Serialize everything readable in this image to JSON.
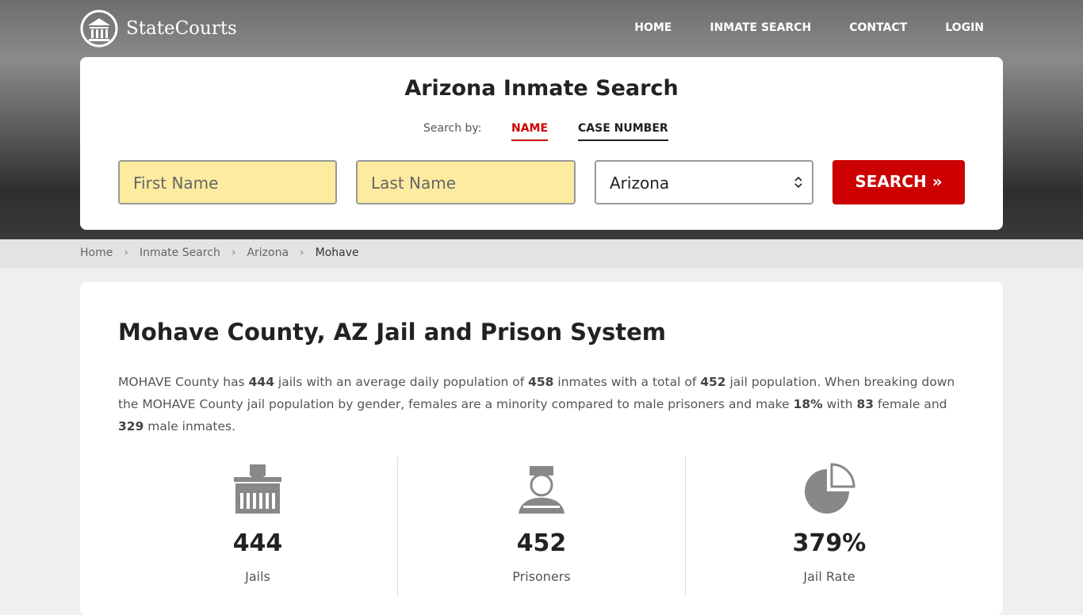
{
  "header": {
    "logo": "StateCourts",
    "nav": [
      "HOME",
      "INMATE SEARCH",
      "CONTACT",
      "LOGIN"
    ]
  },
  "search": {
    "title": "Arizona Inmate Search",
    "search_by": "Search by:",
    "tabs": [
      "NAME",
      "CASE NUMBER"
    ],
    "first_name": "First Name",
    "last_name": "Last Name",
    "state": "Arizona",
    "button": "SEARCH"
  },
  "breadcrumb": [
    "Home",
    "Inmate Search",
    "Arizona",
    "Mohave"
  ],
  "content": {
    "title": "Mohave County, AZ Jail and Prison System",
    "paragraph": [
      {
        "text": "MOHAVE County has "
      },
      {
        "text": "444",
        "bold": true
      },
      {
        "text": " jails with an average daily population of "
      },
      {
        "text": "458",
        "bold": true
      },
      {
        "text": " inmates with a total of "
      },
      {
        "text": "452",
        "bold": true
      },
      {
        "text": " jail population. When breaking down the MOHAVE County jail population by gender, females are a minority compared to male prisoners and make "
      },
      {
        "text": "18%",
        "bold": true
      },
      {
        "text": " with "
      },
      {
        "text": "83",
        "bold": true
      },
      {
        "text": " female and "
      },
      {
        "text": "329",
        "bold": true
      },
      {
        "text": " male inmates."
      }
    ],
    "stats": [
      {
        "value": "444",
        "label": "Jails"
      },
      {
        "value": "452",
        "label": "Prisoners"
      },
      {
        "value": "379%",
        "label": "Jail Rate"
      }
    ]
  }
}
